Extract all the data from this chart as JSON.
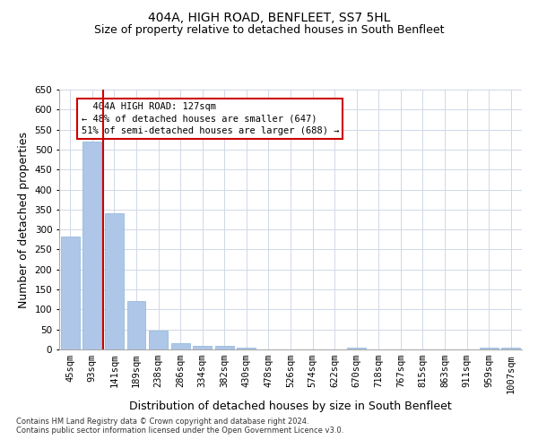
{
  "title": "404A, HIGH ROAD, BENFLEET, SS7 5HL",
  "subtitle": "Size of property relative to detached houses in South Benfleet",
  "xlabel": "Distribution of detached houses by size in South Benfleet",
  "ylabel": "Number of detached properties",
  "categories": [
    "45sqm",
    "93sqm",
    "141sqm",
    "189sqm",
    "238sqm",
    "286sqm",
    "334sqm",
    "382sqm",
    "430sqm",
    "478sqm",
    "526sqm",
    "574sqm",
    "622sqm",
    "670sqm",
    "718sqm",
    "767sqm",
    "815sqm",
    "863sqm",
    "911sqm",
    "959sqm",
    "1007sqm"
  ],
  "values": [
    283,
    519,
    340,
    120,
    47,
    16,
    10,
    8,
    5,
    0,
    0,
    0,
    0,
    5,
    0,
    0,
    0,
    0,
    0,
    5,
    5
  ],
  "bar_color": "#aec6e8",
  "bar_edge_color": "#8ab4d8",
  "marker_line_color": "#cc0000",
  "annotation_box_color": "#ffffff",
  "annotation_box_edge_color": "#cc0000",
  "marker_label": "404A HIGH ROAD: 127sqm",
  "marker_smaller_pct": "48%",
  "marker_smaller_count": 647,
  "marker_larger_pct": "51%",
  "marker_larger_count": 688,
  "ylim": [
    0,
    650
  ],
  "yticks": [
    0,
    50,
    100,
    150,
    200,
    250,
    300,
    350,
    400,
    450,
    500,
    550,
    600,
    650
  ],
  "footer1": "Contains HM Land Registry data © Crown copyright and database right 2024.",
  "footer2": "Contains public sector information licensed under the Open Government Licence v3.0.",
  "title_fontsize": 10,
  "subtitle_fontsize": 9,
  "tick_fontsize": 7.5,
  "label_fontsize": 9,
  "annot_fontsize": 7.5,
  "footer_fontsize": 6,
  "background_color": "#ffffff",
  "grid_color": "#d0d8e8"
}
